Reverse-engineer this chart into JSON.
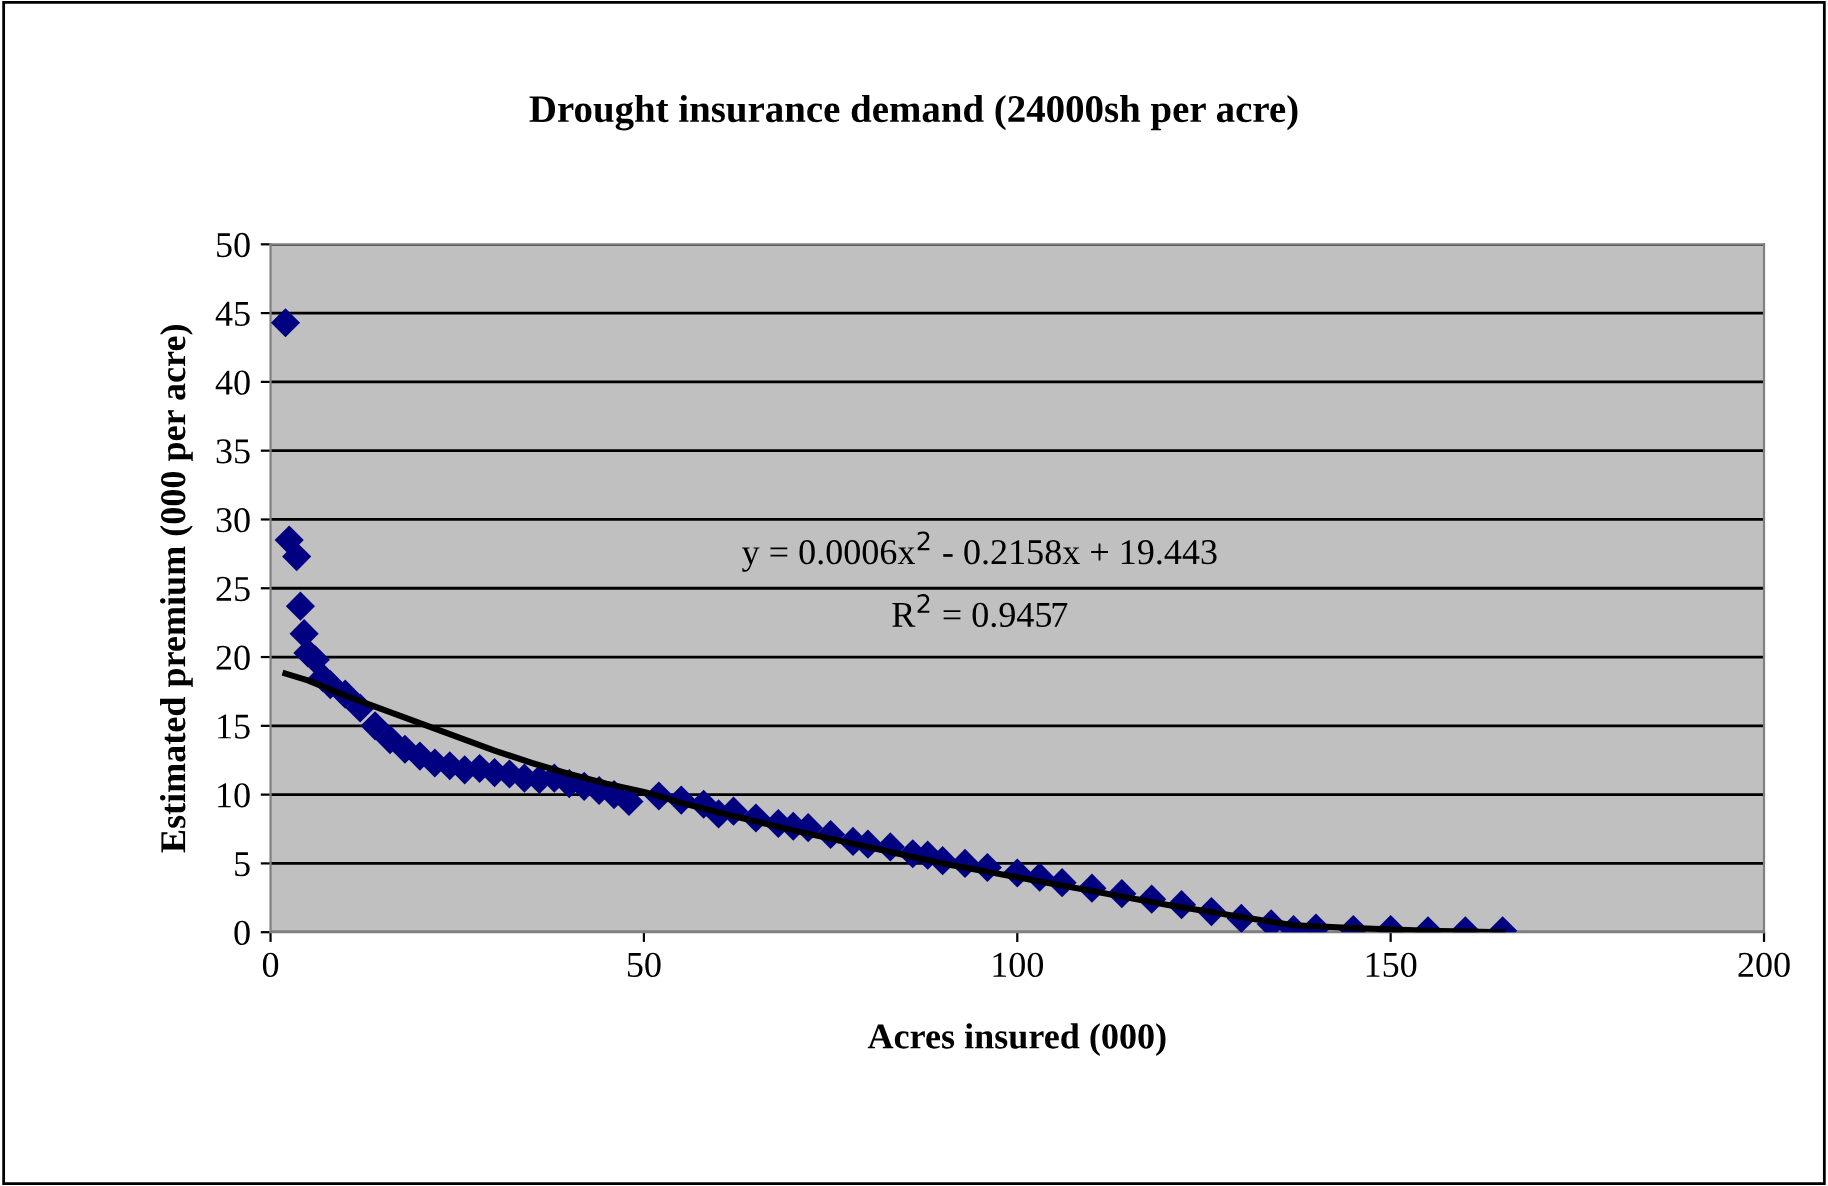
{
  "chart_data": {
    "type": "scatter",
    "title": "Drought insurance demand (24000sh per acre)",
    "xlabel": "Acres insured (000)",
    "ylabel": "Estimated premium (000 per acre)",
    "annotations": [
      "y = 0.0006x$^{2}$ - 0.2158x + 19.443",
      "R$^{2}$ = 0.9457"
    ],
    "xlim": [
      0,
      200
    ],
    "xticks": [
      0,
      50,
      100,
      150,
      200
    ],
    "ylim": [
      0,
      50
    ],
    "yticks": [
      0,
      5,
      10,
      15,
      20,
      25,
      30,
      35,
      40,
      45,
      50
    ],
    "grid": "y",
    "legend": false,
    "marker": "diamond",
    "series": [
      {
        "color": "#000080",
        "x": [
          2,
          2.5,
          3.5,
          4,
          4.5,
          5,
          6,
          7,
          8,
          10,
          12,
          14,
          16,
          18,
          20,
          22,
          24,
          26,
          28,
          30,
          32,
          34,
          36,
          38,
          40,
          42,
          44,
          46,
          48,
          52,
          55,
          58,
          60,
          62,
          65,
          68,
          70,
          72,
          75,
          78,
          80,
          83,
          86,
          88,
          90,
          93,
          96,
          100,
          103,
          106,
          110,
          114,
          118,
          122,
          126,
          130,
          134,
          137,
          140,
          145,
          150,
          155,
          160,
          165
        ],
        "values": [
          44.3,
          28.5,
          27.3,
          23.7,
          21.7,
          20.3,
          19.8,
          18.5,
          18,
          17.3,
          16.3,
          15,
          14,
          13.3,
          12.8,
          12.3,
          12.1,
          11.8,
          11.9,
          11.6,
          11.5,
          11.2,
          11.1,
          11.2,
          10.8,
          10.6,
          10.3,
          10,
          9.5,
          9.9,
          9.6,
          9.3,
          8.6,
          8.8,
          8.3,
          7.9,
          7.7,
          7.6,
          7.1,
          6.6,
          6.4,
          6.2,
          5.7,
          5.6,
          5.2,
          5,
          4.7,
          4.3,
          4,
          3.6,
          3.2,
          2.8,
          2.4,
          2,
          1.5,
          1,
          0.6,
          0.2,
          0.3,
          0.2,
          0.2,
          0.1,
          0.1,
          0.1
        ]
      },
      {
        "type": "line",
        "color": "#000000",
        "marker": "none",
        "x": [
          2,
          5,
          10,
          15,
          20,
          25,
          30,
          35,
          40,
          45,
          50,
          55,
          60,
          70,
          80,
          90,
          100,
          110,
          120,
          130,
          137,
          145,
          155,
          165
        ],
        "values": [
          18.8,
          18.3,
          17.2,
          16.2,
          15.2,
          14.2,
          13.2,
          12.3,
          11.5,
          10.8,
          10.2,
          9.4,
          8.7,
          7.4,
          6.2,
          5,
          4,
          3,
          2,
          1.1,
          0.5,
          0.3,
          0.1,
          0
        ]
      }
    ]
  }
}
